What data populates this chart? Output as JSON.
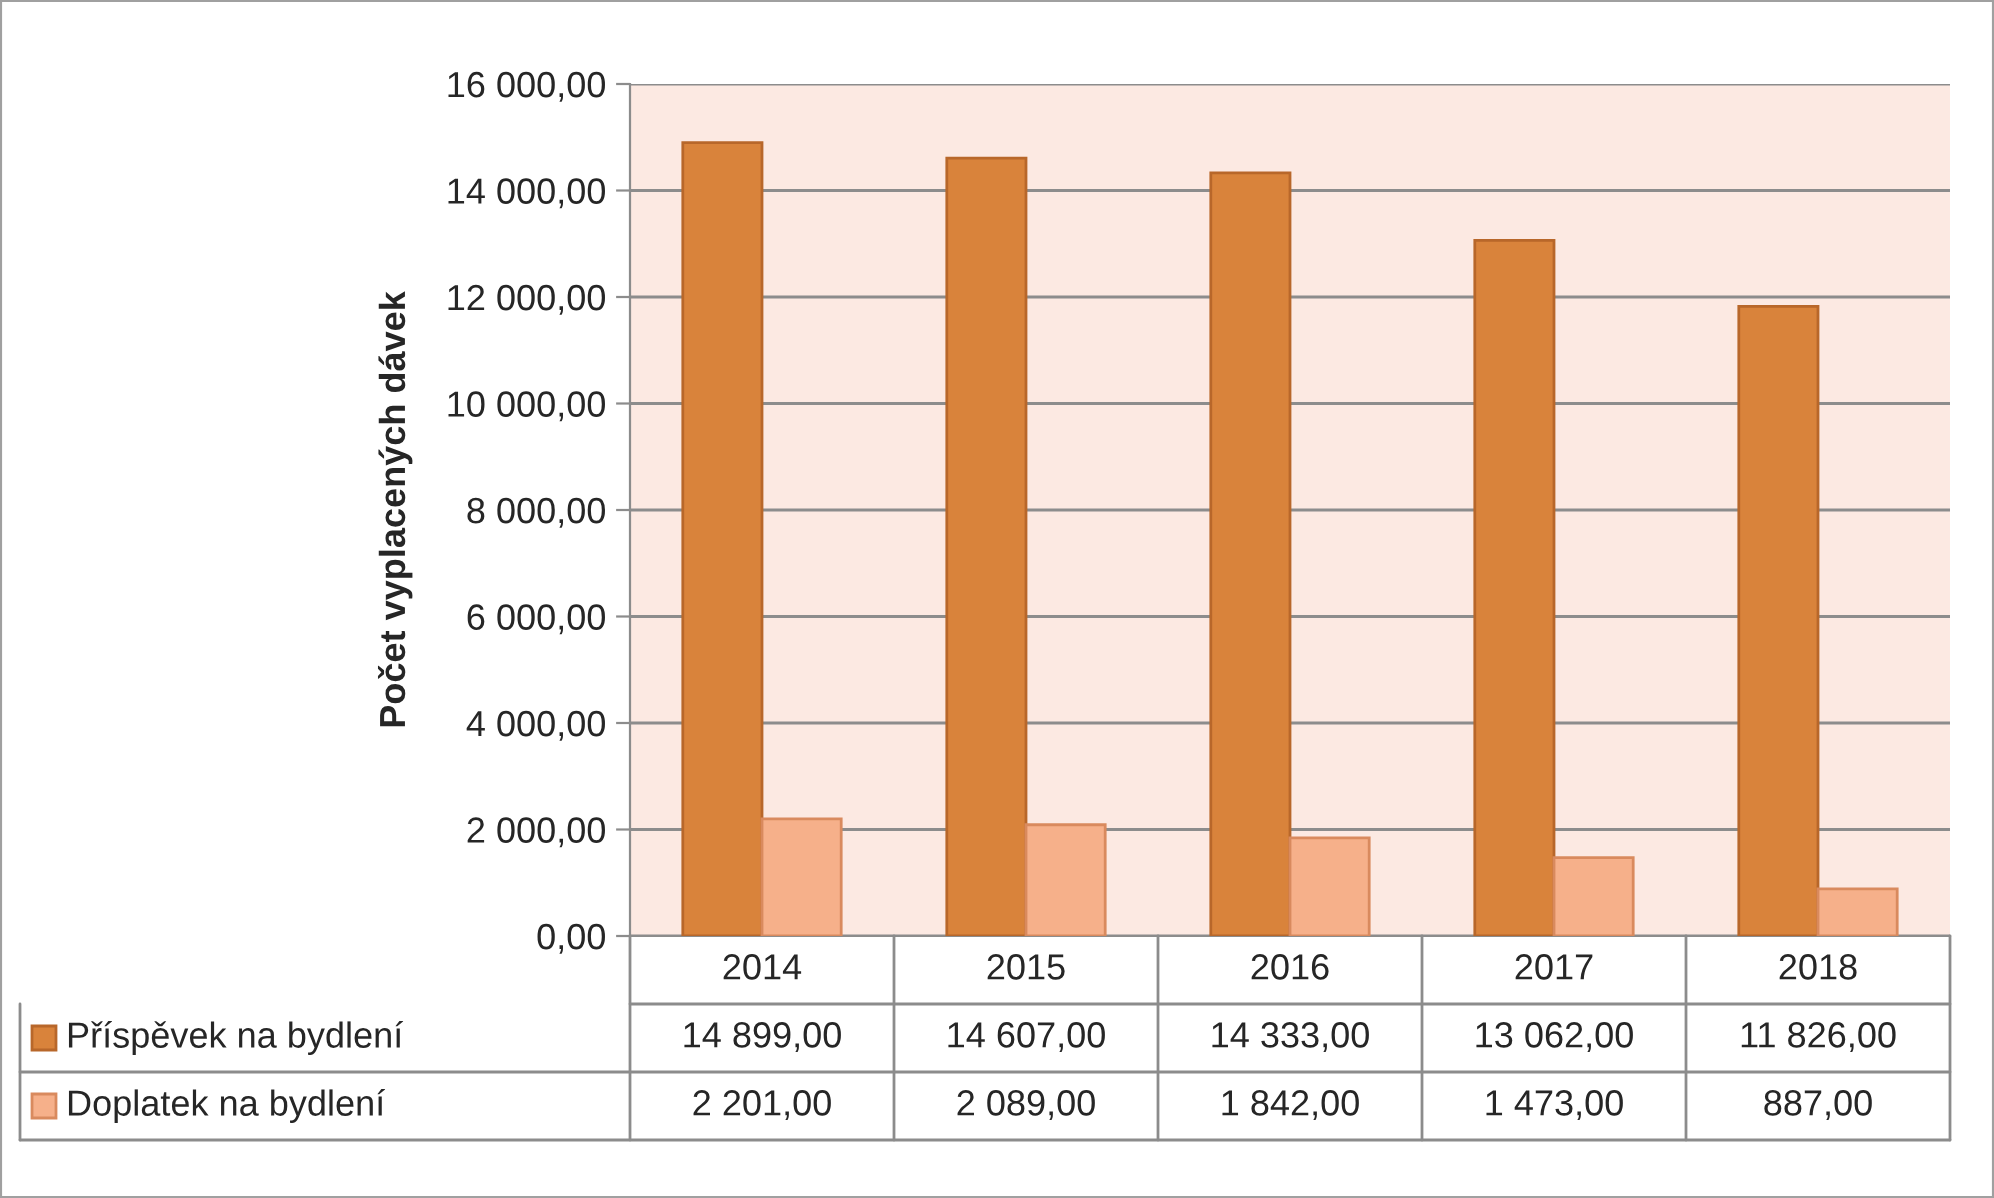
{
  "chart_data": {
    "type": "bar",
    "ylabel": "Počet vyplacených dávek",
    "categories": [
      "2014",
      "2015",
      "2016",
      "2017",
      "2018"
    ],
    "series": [
      {
        "name": "Příspěvek na bydlení",
        "color": "#d9833b",
        "values": [
          14899,
          14607,
          14333,
          13062,
          11826
        ],
        "value_labels": [
          "14 899,00",
          "14 607,00",
          "14 333,00",
          "13 062,00",
          "11 826,00"
        ]
      },
      {
        "name": "Doplatek na bydlení",
        "color": "#f6b08a",
        "values": [
          2201,
          2089,
          1842,
          1473,
          887
        ],
        "value_labels": [
          "2 201,00",
          "2 089,00",
          "1 842,00",
          "1 473,00",
          "887,00"
        ]
      }
    ],
    "ylim": [
      0,
      16000
    ],
    "yticks": [
      {
        "value": 0,
        "label": "0,00"
      },
      {
        "value": 2000,
        "label": "2 000,00"
      },
      {
        "value": 4000,
        "label": "4 000,00"
      },
      {
        "value": 6000,
        "label": "6 000,00"
      },
      {
        "value": 8000,
        "label": "8 000,00"
      },
      {
        "value": 10000,
        "label": "10 000,00"
      },
      {
        "value": 12000,
        "label": "12 000,00"
      },
      {
        "value": 14000,
        "label": "14 000,00"
      },
      {
        "value": 16000,
        "label": "16 000,00"
      }
    ],
    "grid": "y",
    "legend": "bottom"
  }
}
